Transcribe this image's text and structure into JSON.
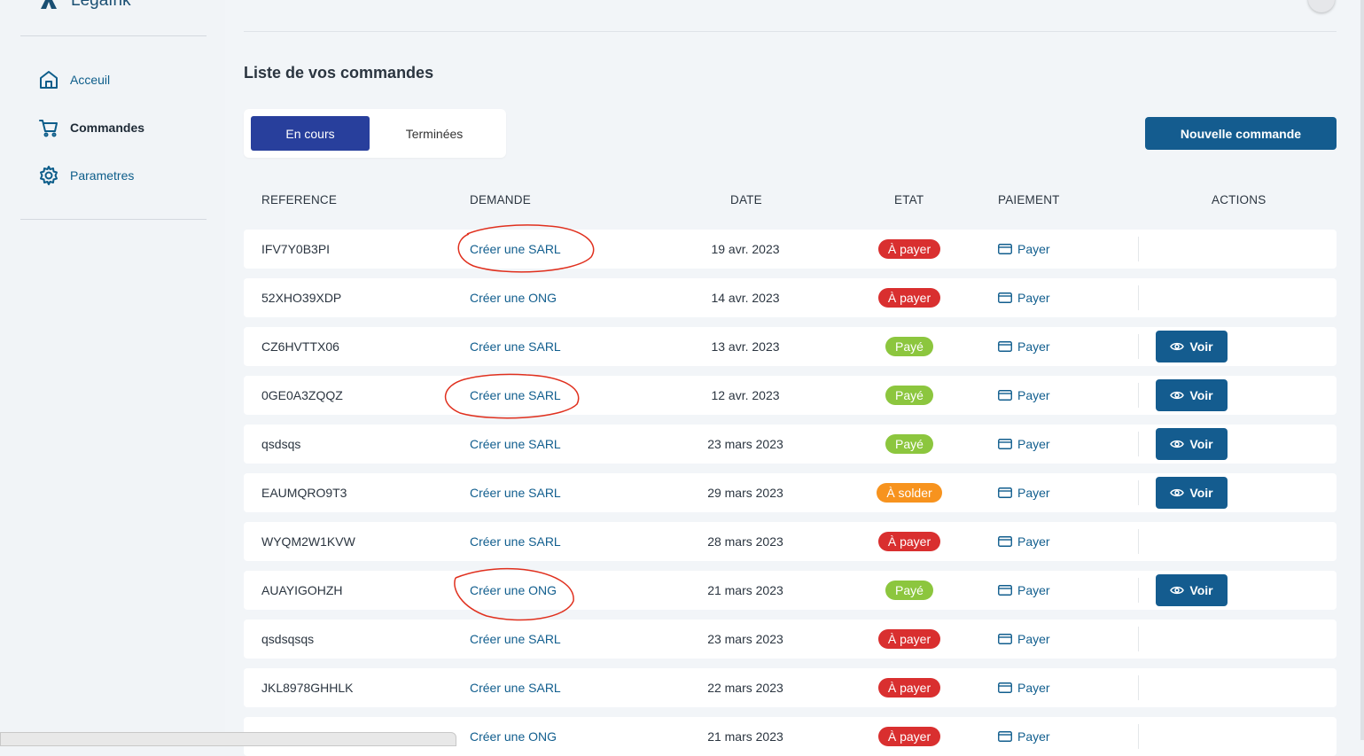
{
  "app": {
    "name": "Legafrik"
  },
  "sidebar": {
    "items": [
      {
        "label": "Acceuil",
        "icon": "home-icon"
      },
      {
        "label": "Commandes",
        "icon": "cart-icon"
      },
      {
        "label": "Parametres",
        "icon": "gear-icon"
      }
    ],
    "active": "Commandes"
  },
  "page": {
    "title": "Liste de vos commandes"
  },
  "tabs": [
    {
      "label": "En cours",
      "active": true
    },
    {
      "label": "Terminées",
      "active": false
    }
  ],
  "new_order_button": "Nouvelle commande",
  "table": {
    "headers": [
      "REFERENCE",
      "DEMANDE",
      "DATE",
      "ETAT",
      "PAIEMENT",
      "ACTIONS"
    ],
    "pay_label": "Payer",
    "view_label": "Voir",
    "rows": [
      {
        "ref": "IFV7Y0B3PI",
        "demande": "Créer une SARL",
        "date": "19 avr. 2023",
        "etat": "À payer",
        "voir": false
      },
      {
        "ref": "52XHO39XDP",
        "demande": "Créer une ONG",
        "date": "14 avr. 2023",
        "etat": "À payer",
        "voir": false
      },
      {
        "ref": "CZ6HVTTX06",
        "demande": "Créer une SARL",
        "date": "13 avr. 2023",
        "etat": "Payé",
        "voir": true
      },
      {
        "ref": "0GE0A3ZQQZ",
        "demande": "Créer une SARL",
        "date": "12 avr. 2023",
        "etat": "Payé",
        "voir": true
      },
      {
        "ref": "qsdsqs",
        "demande": "Créer une SARL",
        "date": "23 mars 2023",
        "etat": "Payé",
        "voir": true
      },
      {
        "ref": "EAUMQRO9T3",
        "demande": "Créer une SARL",
        "date": "29 mars 2023",
        "etat": "À solder",
        "voir": true
      },
      {
        "ref": "WYQM2W1KVW",
        "demande": "Créer une SARL",
        "date": "28 mars 2023",
        "etat": "À payer",
        "voir": false
      },
      {
        "ref": "AUAYIGOHZH",
        "demande": "Créer une ONG",
        "date": "21 mars 2023",
        "etat": "Payé",
        "voir": true
      },
      {
        "ref": "qsdsqsqs",
        "demande": "Créer une SARL",
        "date": "23 mars 2023",
        "etat": "À payer",
        "voir": false
      },
      {
        "ref": "JKL8978GHHLK",
        "demande": "Créer une SARL",
        "date": "22 mars 2023",
        "etat": "À payer",
        "voir": false
      },
      {
        "ref": "",
        "demande": "Créer une ONG",
        "date": "21 mars 2023",
        "etat": "À payer",
        "voir": false
      }
    ]
  },
  "status_colors": {
    "À payer": "#d92f2f",
    "Payé": "#8cc63e",
    "À solder": "#f7931e"
  },
  "colors": {
    "primary": "#145c8f",
    "tab_active": "#283f9c",
    "annotation": "#e0301e"
  }
}
